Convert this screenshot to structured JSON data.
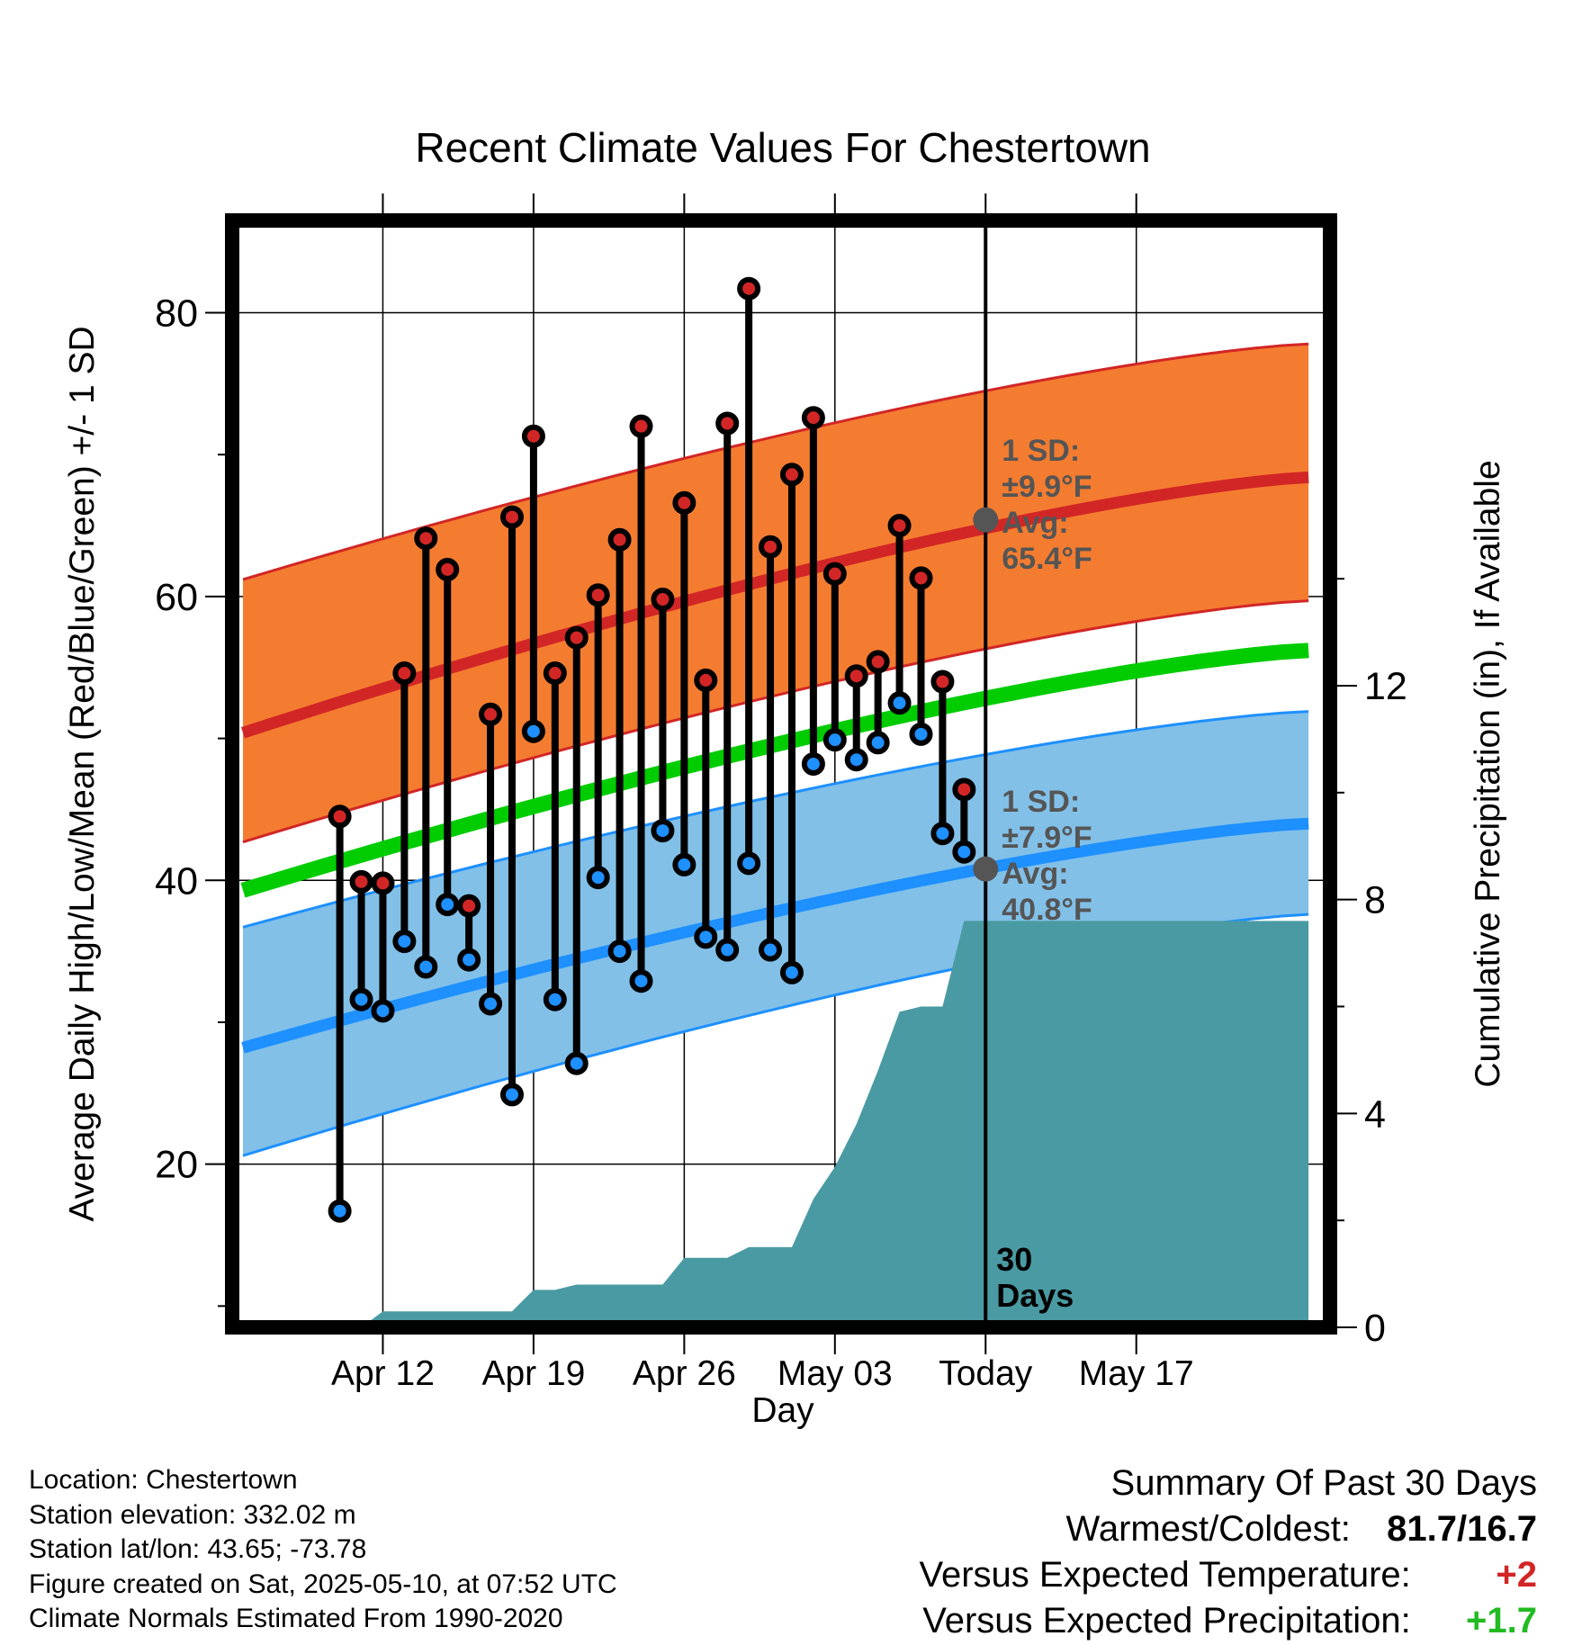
{
  "chart_data": {
    "type": "line",
    "title": "Recent Climate Values For Chestertown",
    "xlabel": "Day",
    "ylabel": "Average Daily High/Low/Mean (Red/Blue/Green) +/- 1 SD",
    "y2label": "Cumulative Precipitation (in), If Available",
    "ylim": [
      8.5,
      86.5
    ],
    "y2lim": [
      0,
      20.7
    ],
    "yticks": [
      20,
      40,
      60,
      80
    ],
    "y2ticks": [
      0,
      4,
      8,
      12
    ],
    "xlim": [
      -5,
      46
    ],
    "xticks": [
      {
        "x": 2,
        "label": "Apr 12"
      },
      {
        "x": 9,
        "label": "Apr 19"
      },
      {
        "x": 16,
        "label": "Apr 26"
      },
      {
        "x": 23,
        "label": "May 03"
      },
      {
        "x": 30,
        "label": "Today"
      },
      {
        "x": 37,
        "label": "May 17"
      }
    ],
    "today_marker": {
      "x": 30,
      "label_line1": "30",
      "label_line2": "Days"
    },
    "daily": {
      "x": [
        0,
        1,
        2,
        3,
        4,
        5,
        6,
        7,
        8,
        9,
        10,
        11,
        12,
        13,
        14,
        15,
        16,
        17,
        18,
        19,
        20,
        21,
        22,
        23,
        24,
        25,
        26,
        27,
        28,
        29
      ],
      "high": [
        44.5,
        39.9,
        39.8,
        54.6,
        64.1,
        61.9,
        38.2,
        51.7,
        65.6,
        71.3,
        54.6,
        57.1,
        60.1,
        64.0,
        72.0,
        59.8,
        66.6,
        54.1,
        72.2,
        81.7,
        63.5,
        68.6,
        72.6,
        61.6,
        54.4,
        55.4,
        65.0,
        61.3,
        54.0,
        46.4
      ],
      "low": [
        16.7,
        31.6,
        30.8,
        35.7,
        33.9,
        38.3,
        34.4,
        31.3,
        24.9,
        50.5,
        31.6,
        27.1,
        40.2,
        35.0,
        32.9,
        43.5,
        41.1,
        36.0,
        35.1,
        41.2,
        35.1,
        33.5,
        48.2,
        49.9,
        48.5,
        49.7,
        52.5,
        50.3,
        43.3,
        42.0
      ]
    },
    "normals": {
      "x": [
        -4.5,
        45
      ],
      "high_avg": [
        50.4,
        68.4
      ],
      "high_band": [
        [
          42.7,
          61.2
        ],
        [
          59.7,
          77.8
        ]
      ],
      "low_avg": [
        28.2,
        44.0
      ],
      "low_band": [
        [
          20.6,
          36.7
        ],
        [
          37.6,
          51.9
        ]
      ],
      "mean_avg": [
        39.3,
        56.2
      ]
    },
    "precipitation": {
      "x": [
        -4.5,
        1,
        2,
        3,
        4,
        5,
        6,
        7,
        8,
        9,
        10,
        11,
        12,
        13,
        14,
        15,
        16,
        17,
        18,
        19,
        20,
        21,
        22,
        23,
        24,
        25,
        26,
        27,
        28,
        29,
        30,
        45
      ],
      "value": [
        0,
        0,
        0.3,
        0.3,
        0.3,
        0.3,
        0.3,
        0.3,
        0.3,
        0.7,
        0.7,
        0.8,
        0.8,
        0.8,
        0.8,
        0.8,
        1.3,
        1.3,
        1.3,
        1.5,
        1.5,
        1.5,
        2.4,
        3.0,
        3.8,
        4.8,
        5.9,
        6.0,
        6.0,
        7.6,
        7.6,
        7.6
      ]
    },
    "annotations": {
      "high": {
        "sd_label": "1 SD:",
        "sd_value": "±9.9°F",
        "avg_label": "Avg:",
        "avg_value": "65.4°F",
        "point_value": 65.4
      },
      "low": {
        "sd_label": "1 SD:",
        "sd_value": "±7.9°F",
        "avg_label": "Avg:",
        "avg_value": "40.8°F",
        "point_value": 40.8
      }
    },
    "colors": {
      "high_band": "#f47c30",
      "high_line": "#d22626",
      "low_band": "#82c0e8",
      "low_line": "#1e90ff",
      "mean_line": "#00cc00",
      "precip": "#4a9aa3",
      "high_marker": "#d22626",
      "low_marker": "#1e90ff",
      "annotation_text": "#555555",
      "today_dot": "#555555"
    }
  },
  "info": {
    "location": "Location: Chestertown",
    "elevation": "Station elevation: 332.02 m",
    "latlon": "Station lat/lon: 43.65; -73.78",
    "created": "Figure created on Sat, 2025-05-10, at 07:52 UTC",
    "normals": "Climate Normals Estimated From 1990-2020"
  },
  "summary": {
    "title": "Summary Of Past 30 Days",
    "warmest_label": "Warmest/Coldest:",
    "warmest_value": "81.7/16.7",
    "temp_label": "Versus Expected Temperature:",
    "temp_value": "+2",
    "temp_color": "#d22626",
    "precip_label": "Versus Expected Precipitation:",
    "precip_value": "+1.7",
    "precip_color": "#22bb22"
  }
}
